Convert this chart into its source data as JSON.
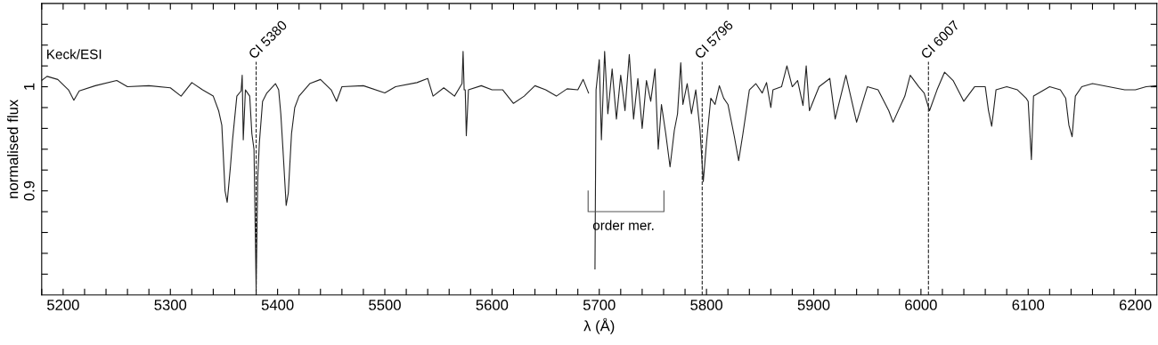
{
  "chart_data": {
    "type": "line",
    "xlabel": "λ (Å)",
    "ylabel": "normalised flux",
    "xlim": [
      5180,
      6220
    ],
    "ylim": [
      0.8,
      1.08
    ],
    "xticks": [
      {
        "value": 5180,
        "label": null
      },
      5200,
      {
        "value": 5220,
        "label": null
      },
      {
        "value": 5240,
        "label": null
      },
      {
        "value": 5260,
        "label": null
      },
      {
        "value": 5280,
        "label": null
      },
      5300,
      {
        "value": 5320,
        "label": null
      },
      {
        "value": 5340,
        "label": null
      },
      {
        "value": 5360,
        "label": null
      },
      {
        "value": 5380,
        "label": null
      },
      5400,
      {
        "value": 5420,
        "label": null
      },
      {
        "value": 5440,
        "label": null
      },
      {
        "value": 5460,
        "label": null
      },
      {
        "value": 5480,
        "label": null
      },
      5500,
      {
        "value": 5520,
        "label": null
      },
      {
        "value": 5540,
        "label": null
      },
      {
        "value": 5560,
        "label": null
      },
      {
        "value": 5580,
        "label": null
      },
      5600,
      {
        "value": 5620,
        "label": null
      },
      {
        "value": 5640,
        "label": null
      },
      {
        "value": 5660,
        "label": null
      },
      {
        "value": 5680,
        "label": null
      },
      5700,
      {
        "value": 5720,
        "label": null
      },
      {
        "value": 5740,
        "label": null
      },
      {
        "value": 5760,
        "label": null
      },
      {
        "value": 5780,
        "label": null
      },
      5800,
      {
        "value": 5820,
        "label": null
      },
      {
        "value": 5840,
        "label": null
      },
      {
        "value": 5860,
        "label": null
      },
      {
        "value": 5880,
        "label": null
      },
      5900,
      {
        "value": 5920,
        "label": null
      },
      {
        "value": 5940,
        "label": null
      },
      {
        "value": 5960,
        "label": null
      },
      {
        "value": 5980,
        "label": null
      },
      6000,
      {
        "value": 6020,
        "label": null
      },
      {
        "value": 6040,
        "label": null
      },
      {
        "value": 6060,
        "label": null
      },
      {
        "value": 6080,
        "label": null
      },
      6100,
      {
        "value": 6120,
        "label": null
      },
      {
        "value": 6140,
        "label": null
      },
      {
        "value": 6160,
        "label": null
      },
      {
        "value": 6180,
        "label": null
      },
      6200
    ],
    "yticks": [
      {
        "value": 0.82,
        "label": null
      },
      {
        "value": 0.84,
        "label": null
      },
      {
        "value": 0.86,
        "label": null
      },
      {
        "value": 0.88,
        "label": null
      },
      0.9,
      {
        "value": 0.92,
        "label": null
      },
      {
        "value": 0.94,
        "label": null
      },
      {
        "value": 0.96,
        "label": null
      },
      {
        "value": 0.98,
        "label": null
      },
      1,
      {
        "value": 1.02,
        "label": null
      },
      {
        "value": 1.04,
        "label": null
      },
      {
        "value": 1.06,
        "label": null
      }
    ],
    "grid": false,
    "legend": false,
    "marker": "none",
    "line_style": "solid",
    "series": [
      {
        "color": "#222222",
        "x": [
          5180,
          5185,
          5195,
          5205,
          5210,
          5215,
          5230,
          5250,
          5260,
          5280,
          5300,
          5310,
          5320,
          5330,
          5340,
          5345,
          5348,
          5351,
          5353,
          5356,
          5358,
          5362,
          5366,
          5367,
          5368,
          5370,
          5374,
          5376,
          5378,
          5380,
          5381.5,
          5383,
          5386,
          5390,
          5398,
          5401,
          5403,
          5405,
          5408,
          5410,
          5413,
          5416,
          5420,
          5430,
          5440,
          5450,
          5455,
          5460,
          5480,
          5500,
          5510,
          5530,
          5540,
          5545,
          5555,
          5565,
          5572,
          5573,
          5574,
          5575,
          5576,
          5578,
          5590,
          5600,
          5610,
          5620,
          5630,
          5640,
          5650,
          5660,
          5670,
          5680,
          5685,
          5690,
          5694,
          5695,
          5696,
          5697,
          5700,
          5702,
          5705,
          5708,
          5712,
          5716,
          5720,
          5724,
          5728,
          5732,
          5736,
          5740,
          5744,
          5748,
          5752,
          5755,
          5758,
          5762,
          5766,
          5770,
          5773,
          5776,
          5778,
          5782,
          5786,
          5790,
          5794,
          5797,
          5800,
          5804,
          5808,
          5812,
          5816,
          5820,
          5826,
          5830,
          5834,
          5840,
          5846,
          5852,
          5856,
          5860,
          5862,
          5870,
          5875,
          5880,
          5885,
          5890,
          5893,
          5896,
          5905,
          5915,
          5920,
          5930,
          5940,
          5950,
          5960,
          5970,
          5974,
          5985,
          5990,
          5998,
          6003,
          6008,
          6015,
          6022,
          6030,
          6040,
          6050,
          6060,
          6063,
          6066,
          6070,
          6080,
          6090,
          6098,
          6100,
          6103,
          6105,
          6120,
          6130,
          6135,
          6138,
          6141,
          6144,
          6150,
          6160,
          6175,
          6190,
          6200,
          6210,
          6220
        ],
        "values": [
          1.006,
          1.01,
          1.007,
          0.997,
          0.987,
          0.996,
          1.001,
          1.006,
          1.0,
          1.001,
          0.999,
          0.991,
          1.004,
          0.997,
          0.991,
          0.977,
          0.963,
          0.9,
          0.889,
          0.923,
          0.949,
          0.991,
          0.996,
          1.011,
          0.949,
          0.997,
          0.991,
          0.955,
          0.94,
          0.807,
          0.912,
          0.946,
          0.986,
          0.994,
          1.003,
          0.997,
          0.974,
          0.94,
          0.886,
          0.898,
          0.955,
          0.98,
          0.991,
          1.003,
          1.007,
          0.997,
          0.986,
          1.0,
          1.001,
          0.994,
          1.0,
          1.004,
          1.008,
          0.991,
          0.999,
          0.991,
          1.003,
          1.034,
          0.997,
          0.997,
          0.953,
          0.997,
          1.001,
          0.997,
          0.997,
          0.984,
          0.991,
          1.001,
          0.997,
          0.991,
          0.998,
          0.997,
          1.007,
          0.994,
          null,
          null,
          0.825,
          0.997,
          1.026,
          0.949,
          1.034,
          0.974,
          1.017,
          0.969,
          1.011,
          0.977,
          1.031,
          0.969,
          1.008,
          0.96,
          1.006,
          0.986,
          1.017,
          0.94,
          0.983,
          0.955,
          0.923,
          0.958,
          0.974,
          1.023,
          0.983,
          1.003,
          0.974,
          0.997,
          0.958,
          0.909,
          0.946,
          0.989,
          0.983,
          1.001,
          0.989,
          0.983,
          0.952,
          0.929,
          0.955,
          0.997,
          1.003,
          0.994,
          1.004,
          0.98,
          0.997,
          1.0,
          1.02,
          1.0,
          1.006,
          0.982,
          1.02,
          0.977,
          1.0,
          1.008,
          0.969,
          1.011,
          0.966,
          1.0,
          0.997,
          0.977,
          0.966,
          0.991,
          1.011,
          1.0,
          0.994,
          0.977,
          0.997,
          1.014,
          1.006,
          0.986,
          1.0,
          1.0,
          0.977,
          0.962,
          0.997,
          1.0,
          0.997,
          0.989,
          0.986,
          0.93,
          0.991,
          1.0,
          0.997,
          0.989,
          0.963,
          0.952,
          0.991,
          1.0,
          1.003,
          1.0,
          0.997,
          0.997,
          1.0,
          1.001
        ]
      }
    ],
    "ref_lines": [
      {
        "axis": "x",
        "value": 5380,
        "label": "CI 5380",
        "line_style": "dashed",
        "color": "#222222"
      },
      {
        "axis": "x",
        "value": 5796,
        "label": "CI 5796",
        "line_style": "dashed",
        "color": "#222222"
      },
      {
        "axis": "x",
        "value": 6007,
        "label": "CI 6007",
        "line_style": "dashed",
        "color": "#222222"
      }
    ],
    "annotations": [
      "Keck/ESI",
      "order mer."
    ]
  }
}
